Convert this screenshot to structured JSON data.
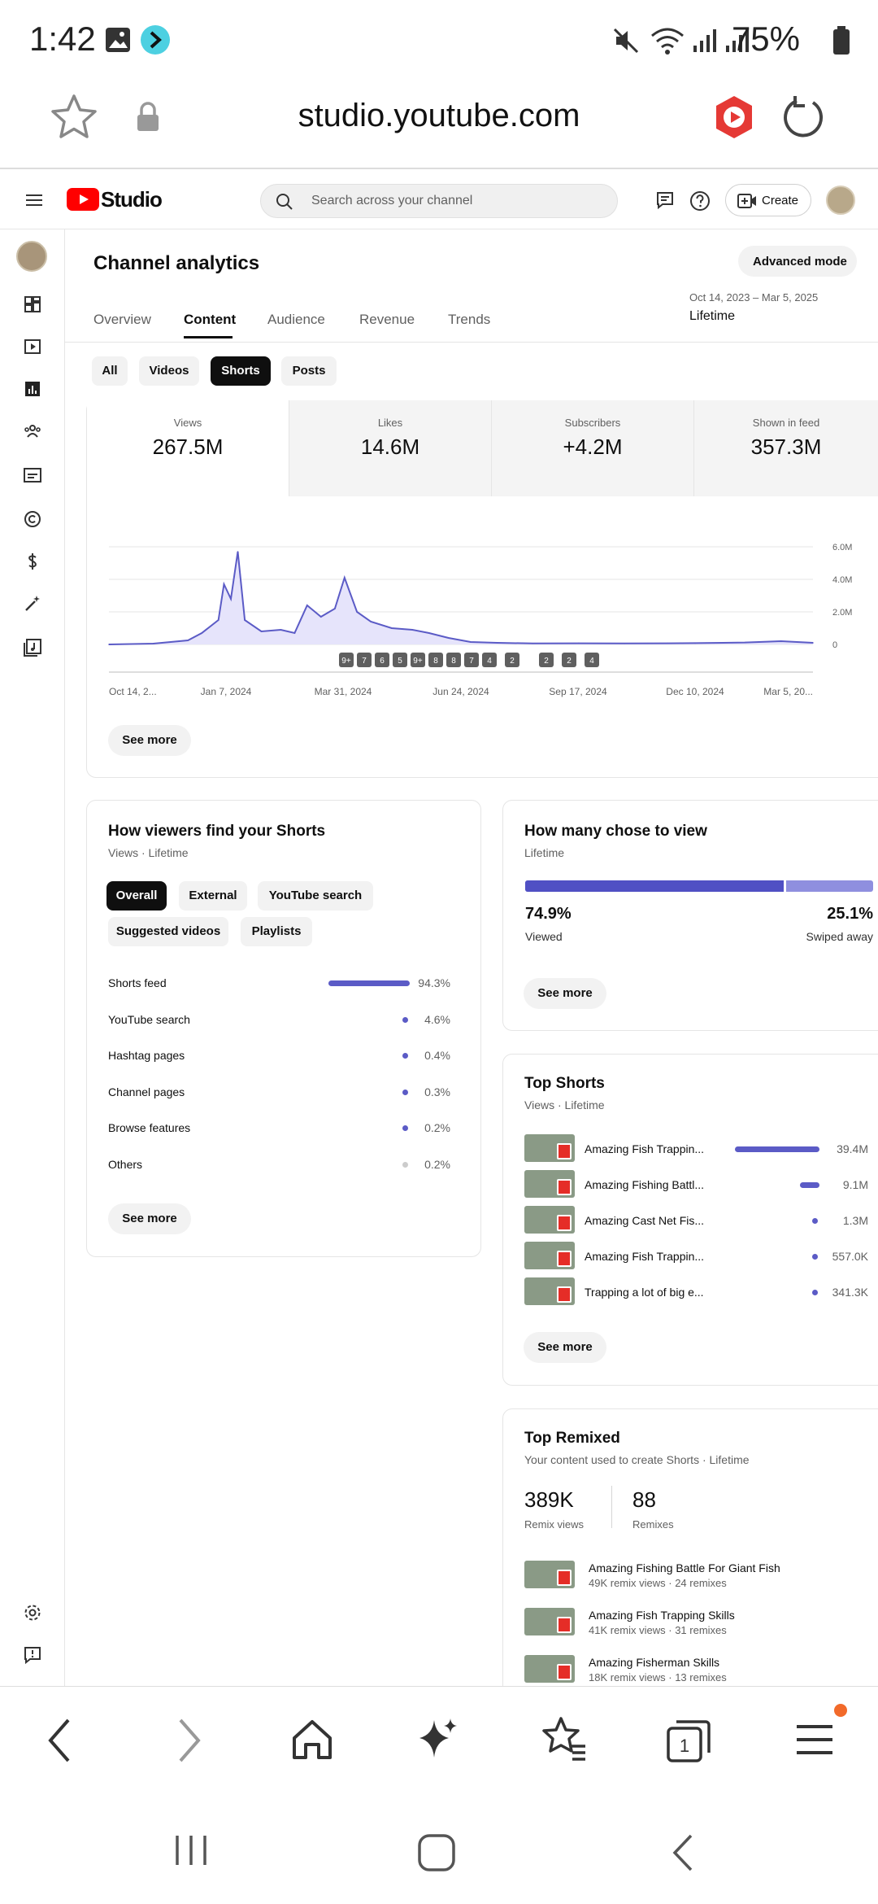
{
  "status_bar": {
    "time": "1:42",
    "battery": "75%"
  },
  "browser": {
    "url": "studio.youtube.com"
  },
  "header": {
    "logo_text": "Studio",
    "search_placeholder": "Search across your channel",
    "create_label": "Create"
  },
  "page": {
    "title": "Channel analytics",
    "advanced_mode": "Advanced mode",
    "tabs": [
      "Overview",
      "Content",
      "Audience",
      "Revenue",
      "Trends"
    ],
    "date_range": "Oct 14, 2023 – Mar 5, 2025",
    "date_label": "Lifetime"
  },
  "content_chips": [
    "All",
    "Videos",
    "Shorts",
    "Posts"
  ],
  "metrics": [
    {
      "label": "Views",
      "value": "267.5M"
    },
    {
      "label": "Likes",
      "value": "14.6M"
    },
    {
      "label": "Subscribers",
      "value": "+4.2M"
    },
    {
      "label": "Shown in feed",
      "value": "357.3M"
    }
  ],
  "chart_data": {
    "type": "area",
    "y_ticks": [
      "6.0M",
      "4.0M",
      "2.0M",
      "0"
    ],
    "x_ticks": [
      "Oct 14, 2...",
      "Jan 7, 2024",
      "Mar 31, 2024",
      "Jun 24, 2024",
      "Sep 17, 2024",
      "Dec 10, 2024",
      "Mar 5, 20..."
    ],
    "ylim": [
      0,
      6000000
    ],
    "markers": [
      "9+",
      "7",
      "6",
      "5",
      "9+",
      "8",
      "8",
      "7",
      "4",
      "2",
      "2",
      "2",
      "4"
    ],
    "x": [
      "2023-10-14",
      "2023-11-15",
      "2023-12-10",
      "2023-12-20",
      "2024-01-01",
      "2024-01-05",
      "2024-01-10",
      "2024-01-15",
      "2024-01-20",
      "2024-02-01",
      "2024-02-15",
      "2024-02-25",
      "2024-03-05",
      "2024-03-15",
      "2024-03-25",
      "2024-04-01",
      "2024-04-10",
      "2024-04-20",
      "2024-05-05",
      "2024-05-20",
      "2024-06-01",
      "2024-06-15",
      "2024-07-01",
      "2024-07-20",
      "2024-08-15",
      "2024-09-17",
      "2024-10-20",
      "2024-11-20",
      "2024-12-10",
      "2025-01-15",
      "2025-02-10",
      "2025-03-05"
    ],
    "values": [
      0,
      50000,
      250000,
      700000,
      1500000,
      3700000,
      2800000,
      5700000,
      1500000,
      800000,
      900000,
      700000,
      2400000,
      1700000,
      2200000,
      4100000,
      2000000,
      1400000,
      1000000,
      900000,
      700000,
      400000,
      150000,
      100000,
      60000,
      70000,
      60000,
      70000,
      80000,
      120000,
      200000,
      100000
    ]
  },
  "see_more": "See more",
  "how_viewers": {
    "title": "How viewers find your Shorts",
    "subtitle": "Views · Lifetime",
    "chips": [
      "Overall",
      "External",
      "YouTube search",
      "Suggested videos",
      "Playlists"
    ],
    "rows": [
      {
        "label": "Shorts feed",
        "pct": "94.3%",
        "fraction": 0.943
      },
      {
        "label": "YouTube search",
        "pct": "4.6%",
        "fraction": 0.046
      },
      {
        "label": "Hashtag pages",
        "pct": "0.4%",
        "fraction": 0.004
      },
      {
        "label": "Channel pages",
        "pct": "0.3%",
        "fraction": 0.003
      },
      {
        "label": "Browse features",
        "pct": "0.2%",
        "fraction": 0.002
      },
      {
        "label": "Others",
        "pct": "0.2%",
        "fraction": 0.002
      }
    ]
  },
  "chose_to_view": {
    "title": "How many chose to view",
    "subtitle": "Lifetime",
    "viewed_pct": "74.9%",
    "viewed_label": "Viewed",
    "swiped_pct": "25.1%",
    "swiped_label": "Swiped away",
    "viewed_fraction": 0.749
  },
  "top_shorts": {
    "title": "Top Shorts",
    "subtitle": "Views · Lifetime",
    "items": [
      {
        "title": "Amazing Fish Trappin...",
        "views": "39.4M",
        "fraction": 1.0
      },
      {
        "title": "Amazing Fishing Battl...",
        "views": "9.1M",
        "fraction": 0.23
      },
      {
        "title": "Amazing Cast Net Fis...",
        "views": "1.3M",
        "fraction": 0.033
      },
      {
        "title": "Amazing Fish Trappin...",
        "views": "557.0K",
        "fraction": 0.014
      },
      {
        "title": "Trapping a lot of big e...",
        "views": "341.3K",
        "fraction": 0.009
      }
    ]
  },
  "top_remixed": {
    "title": "Top Remixed",
    "subtitle": "Your content used to create Shorts · Lifetime",
    "remix_views": "389K",
    "remix_views_label": "Remix views",
    "remixes": "88",
    "remixes_label": "Remixes",
    "items": [
      {
        "title": "Amazing Fishing Battle For Giant Fish",
        "meta": "49K remix views · 24 remixes"
      },
      {
        "title": "Amazing Fish Trapping Skills",
        "meta": "41K remix views · 31 remixes"
      },
      {
        "title": "Amazing Fisherman Skills",
        "meta": "18K remix views · 13 remixes"
      }
    ]
  }
}
